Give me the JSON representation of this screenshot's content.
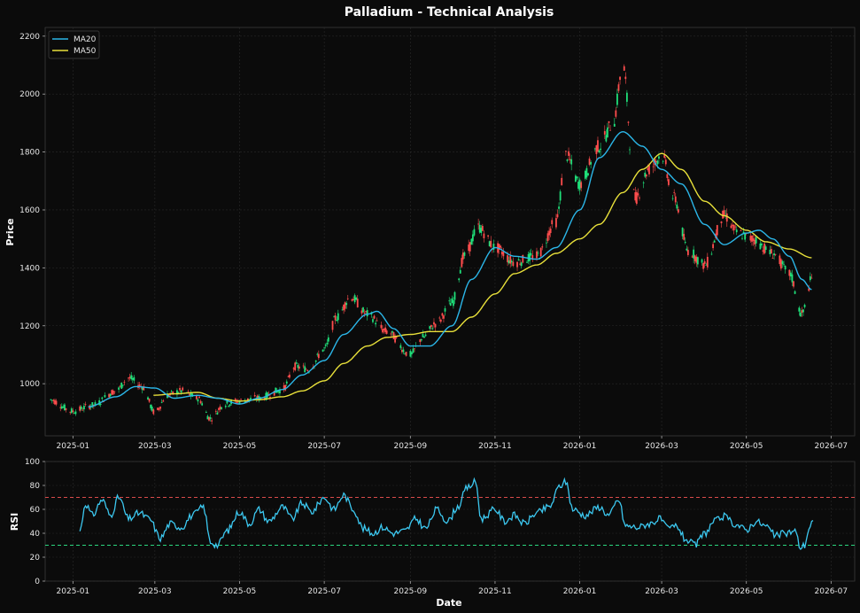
{
  "colors": {
    "background": "#0b0b0b",
    "up": "#1fe07a",
    "down": "#ff4d4d",
    "ma20": "#2bb6e8",
    "ma50": "#e8e03a",
    "rsi": "#3cc8f0",
    "overbought": "#d94a4a",
    "oversold": "#2bd67f"
  },
  "chart_data": [
    {
      "type": "candlestick",
      "title": "Palladium - Technical Analysis",
      "ylabel": "Price",
      "xlabel": "",
      "ylim": [
        820,
        2230
      ],
      "xlim": [
        "2024-12-12",
        "2026-07-18"
      ],
      "yticks": [
        1000,
        1200,
        1400,
        1600,
        1800,
        2000,
        2200
      ],
      "xticks": [
        "2025-01",
        "2025-03",
        "2025-05",
        "2025-07",
        "2025-09",
        "2025-11",
        "2026-01",
        "2026-03",
        "2026-05",
        "2026-07"
      ],
      "grid": true,
      "legend_position": "top-left",
      "series": [
        {
          "name": "MA20",
          "color": "#2bb6e8"
        },
        {
          "name": "MA50",
          "color": "#e8e03a"
        }
      ],
      "price_path_anchors": [
        [
          "2024-12-15",
          945
        ],
        [
          "2025-01-01",
          905
        ],
        [
          "2025-01-15",
          925
        ],
        [
          "2025-02-01",
          975
        ],
        [
          "2025-02-10",
          1020
        ],
        [
          "2025-02-20",
          990
        ],
        [
          "2025-03-01",
          900
        ],
        [
          "2025-03-10",
          960
        ],
        [
          "2025-03-20",
          975
        ],
        [
          "2025-04-01",
          950
        ],
        [
          "2025-04-10",
          880
        ],
        [
          "2025-04-20",
          930
        ],
        [
          "2025-05-01",
          940
        ],
        [
          "2025-05-15",
          950
        ],
        [
          "2025-06-01",
          980
        ],
        [
          "2025-06-10",
          1060
        ],
        [
          "2025-06-20",
          1050
        ],
        [
          "2025-07-01",
          1120
        ],
        [
          "2025-07-10",
          1230
        ],
        [
          "2025-07-20",
          1300
        ],
        [
          "2025-08-01",
          1240
        ],
        [
          "2025-08-15",
          1180
        ],
        [
          "2025-09-01",
          1100
        ],
        [
          "2025-09-10",
          1160
        ],
        [
          "2025-09-20",
          1210
        ],
        [
          "2025-10-01",
          1280
        ],
        [
          "2025-10-10",
          1440
        ],
        [
          "2025-10-20",
          1540
        ],
        [
          "2025-11-01",
          1470
        ],
        [
          "2025-11-15",
          1420
        ],
        [
          "2025-12-01",
          1440
        ],
        [
          "2025-12-15",
          1560
        ],
        [
          "2025-12-22",
          1790
        ],
        [
          "2026-01-01",
          1690
        ],
        [
          "2026-01-15",
          1820
        ],
        [
          "2026-01-25",
          1900
        ],
        [
          "2026-02-01",
          2100
        ],
        [
          "2026-02-10",
          1640
        ],
        [
          "2026-02-20",
          1740
        ],
        [
          "2026-03-01",
          1790
        ],
        [
          "2026-03-10",
          1640
        ],
        [
          "2026-03-20",
          1460
        ],
        [
          "2026-04-01",
          1410
        ],
        [
          "2026-04-15",
          1580
        ],
        [
          "2026-04-25",
          1520
        ],
        [
          "2026-05-05",
          1500
        ],
        [
          "2026-05-20",
          1450
        ],
        [
          "2026-06-01",
          1380
        ],
        [
          "2026-06-10",
          1240
        ],
        [
          "2026-06-17",
          1360
        ]
      ],
      "ma20_anchors": [
        [
          "2025-01-12",
          920
        ],
        [
          "2025-02-01",
          955
        ],
        [
          "2025-02-15",
          990
        ],
        [
          "2025-03-01",
          985
        ],
        [
          "2025-03-15",
          950
        ],
        [
          "2025-04-01",
          960
        ],
        [
          "2025-04-15",
          950
        ],
        [
          "2025-05-01",
          930
        ],
        [
          "2025-05-15",
          950
        ],
        [
          "2025-06-01",
          980
        ],
        [
          "2025-06-15",
          1030
        ],
        [
          "2025-07-01",
          1080
        ],
        [
          "2025-07-15",
          1170
        ],
        [
          "2025-08-01",
          1240
        ],
        [
          "2025-08-08",
          1250
        ],
        [
          "2025-08-20",
          1190
        ],
        [
          "2025-09-01",
          1130
        ],
        [
          "2025-09-15",
          1130
        ],
        [
          "2025-10-01",
          1200
        ],
        [
          "2025-10-15",
          1360
        ],
        [
          "2025-11-01",
          1470
        ],
        [
          "2025-11-15",
          1440
        ],
        [
          "2025-12-01",
          1430
        ],
        [
          "2025-12-15",
          1470
        ],
        [
          "2026-01-01",
          1600
        ],
        [
          "2026-01-15",
          1780
        ],
        [
          "2026-02-01",
          1870
        ],
        [
          "2026-02-15",
          1820
        ],
        [
          "2026-03-01",
          1740
        ],
        [
          "2026-03-15",
          1690
        ],
        [
          "2026-04-01",
          1550
        ],
        [
          "2026-04-15",
          1480
        ],
        [
          "2026-05-01",
          1520
        ],
        [
          "2026-05-10",
          1530
        ],
        [
          "2026-05-20",
          1500
        ],
        [
          "2026-06-01",
          1440
        ],
        [
          "2026-06-10",
          1360
        ],
        [
          "2026-06-17",
          1325
        ]
      ],
      "ma50_anchors": [
        [
          "2025-02-28",
          960
        ],
        [
          "2025-03-15",
          965
        ],
        [
          "2025-04-01",
          970
        ],
        [
          "2025-04-15",
          950
        ],
        [
          "2025-05-01",
          940
        ],
        [
          "2025-05-15",
          945
        ],
        [
          "2025-06-01",
          955
        ],
        [
          "2025-06-15",
          975
        ],
        [
          "2025-07-01",
          1010
        ],
        [
          "2025-07-15",
          1070
        ],
        [
          "2025-08-01",
          1130
        ],
        [
          "2025-08-15",
          1160
        ],
        [
          "2025-09-01",
          1170
        ],
        [
          "2025-09-15",
          1180
        ],
        [
          "2025-10-01",
          1180
        ],
        [
          "2025-10-15",
          1230
        ],
        [
          "2025-11-01",
          1310
        ],
        [
          "2025-11-15",
          1380
        ],
        [
          "2025-12-01",
          1410
        ],
        [
          "2025-12-15",
          1450
        ],
        [
          "2026-01-01",
          1500
        ],
        [
          "2026-01-15",
          1550
        ],
        [
          "2026-02-01",
          1660
        ],
        [
          "2026-02-15",
          1740
        ],
        [
          "2026-03-01",
          1795
        ],
        [
          "2026-03-15",
          1740
        ],
        [
          "2026-04-01",
          1630
        ],
        [
          "2026-04-15",
          1580
        ],
        [
          "2026-05-01",
          1530
        ],
        [
          "2026-05-15",
          1490
        ],
        [
          "2026-06-01",
          1465
        ],
        [
          "2026-06-17",
          1435
        ]
      ]
    },
    {
      "type": "line",
      "title": "",
      "ylabel": "RSI",
      "xlabel": "Date",
      "ylim": [
        0,
        100
      ],
      "xlim": [
        "2024-12-12",
        "2026-07-18"
      ],
      "yticks": [
        0,
        20,
        40,
        60,
        80,
        100
      ],
      "xticks": [
        "2025-01",
        "2025-03",
        "2025-05",
        "2025-07",
        "2025-09",
        "2025-11",
        "2026-01",
        "2026-03",
        "2026-05",
        "2026-07"
      ],
      "reference_lines": [
        70,
        30
      ],
      "grid": true,
      "rsi_anchors": [
        [
          "2025-01-06",
          42
        ],
        [
          "2025-01-10",
          65
        ],
        [
          "2025-01-15",
          55
        ],
        [
          "2025-01-22",
          68
        ],
        [
          "2025-01-28",
          55
        ],
        [
          "2025-02-03",
          70
        ],
        [
          "2025-02-10",
          52
        ],
        [
          "2025-02-18",
          57
        ],
        [
          "2025-02-25",
          52
        ],
        [
          "2025-03-05",
          36
        ],
        [
          "2025-03-12",
          48
        ],
        [
          "2025-03-20",
          45
        ],
        [
          "2025-03-28",
          55
        ],
        [
          "2025-04-05",
          62
        ],
        [
          "2025-04-10",
          33
        ],
        [
          "2025-04-15",
          30
        ],
        [
          "2025-04-22",
          42
        ],
        [
          "2025-05-01",
          58
        ],
        [
          "2025-05-08",
          48
        ],
        [
          "2025-05-15",
          60
        ],
        [
          "2025-05-22",
          50
        ],
        [
          "2025-06-01",
          62
        ],
        [
          "2025-06-08",
          52
        ],
        [
          "2025-06-15",
          65
        ],
        [
          "2025-06-22",
          58
        ],
        [
          "2025-07-01",
          70
        ],
        [
          "2025-07-08",
          60
        ],
        [
          "2025-07-15",
          72
        ],
        [
          "2025-07-22",
          60
        ],
        [
          "2025-07-29",
          44
        ],
        [
          "2025-08-05",
          40
        ],
        [
          "2025-08-12",
          45
        ],
        [
          "2025-08-20",
          40
        ],
        [
          "2025-08-28",
          42
        ],
        [
          "2025-09-05",
          52
        ],
        [
          "2025-09-12",
          44
        ],
        [
          "2025-09-20",
          60
        ],
        [
          "2025-09-28",
          50
        ],
        [
          "2025-10-05",
          62
        ],
        [
          "2025-10-12",
          78
        ],
        [
          "2025-10-18",
          83
        ],
        [
          "2025-10-22",
          52
        ],
        [
          "2025-11-01",
          60
        ],
        [
          "2025-11-08",
          50
        ],
        [
          "2025-11-15",
          55
        ],
        [
          "2025-11-22",
          48
        ],
        [
          "2025-12-01",
          57
        ],
        [
          "2025-12-10",
          62
        ],
        [
          "2025-12-18",
          80
        ],
        [
          "2025-12-22",
          83
        ],
        [
          "2025-12-27",
          60
        ],
        [
          "2026-01-05",
          55
        ],
        [
          "2026-01-15",
          62
        ],
        [
          "2026-01-22",
          55
        ],
        [
          "2026-01-29",
          68
        ],
        [
          "2026-02-03",
          46
        ],
        [
          "2026-02-12",
          45
        ],
        [
          "2026-02-20",
          48
        ],
        [
          "2026-02-28",
          52
        ],
        [
          "2026-03-05",
          44
        ],
        [
          "2026-03-12",
          46
        ],
        [
          "2026-03-18",
          35
        ],
        [
          "2026-03-25",
          30
        ],
        [
          "2026-04-01",
          40
        ],
        [
          "2026-04-08",
          50
        ],
        [
          "2026-04-15",
          54
        ],
        [
          "2026-04-22",
          48
        ],
        [
          "2026-05-01",
          43
        ],
        [
          "2026-05-08",
          50
        ],
        [
          "2026-05-15",
          46
        ],
        [
          "2026-05-22",
          38
        ],
        [
          "2026-05-29",
          40
        ],
        [
          "2026-06-05",
          42
        ],
        [
          "2026-06-09",
          28
        ],
        [
          "2026-06-12",
          30
        ],
        [
          "2026-06-15",
          44
        ],
        [
          "2026-06-18",
          50
        ]
      ]
    }
  ]
}
